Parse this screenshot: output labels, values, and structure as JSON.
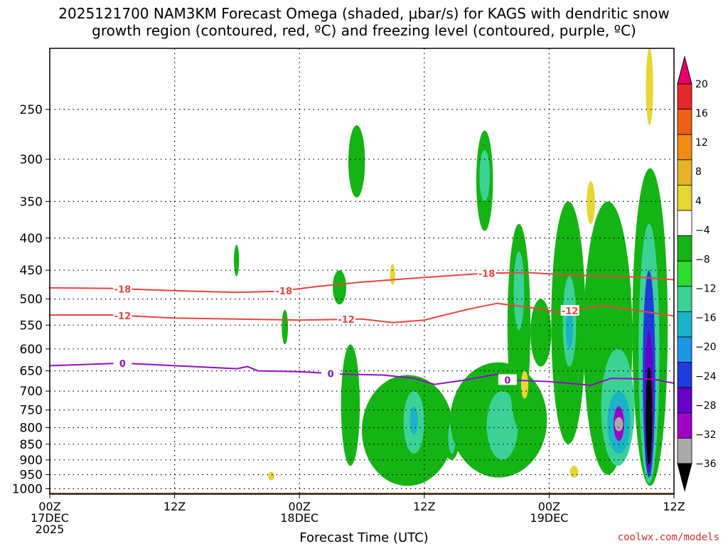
{
  "title_line1": "2025121700 NAM3KM Forecast Omega (shaded, μbar/s) for KAGS with dendritic snow",
  "title_line2": "growth region (contoured, red, ºC) and freezing level (contoured, purple, ºC)",
  "credit": "coolwx.com/models",
  "colors": {
    "dgz_line": "#e8453c",
    "freezing_line": "#9010c0",
    "ground": "#a0522d"
  },
  "chart_data": {
    "type": "heatmap",
    "title": "2025121700 NAM3KM Forecast Omega (shaded, μbar/s) for KAGS with dendritic snow growth region (contoured, red, ºC) and freezing level (contoured, purple, ºC)",
    "xlabel": "Forecast Time (UTC)",
    "ylabel": "",
    "x_range_hours": [
      0,
      60
    ],
    "y_range_hpa": [
      200,
      1020
    ],
    "y_scale": "log",
    "y_inverted": true,
    "grid": true,
    "y_ticks": [
      250,
      300,
      350,
      400,
      450,
      500,
      550,
      600,
      650,
      700,
      750,
      800,
      850,
      900,
      950,
      1000
    ],
    "x_ticks": [
      {
        "hour": 0,
        "lines": [
          "00Z",
          "17DEC",
          "2025"
        ]
      },
      {
        "hour": 12,
        "lines": [
          "12Z"
        ]
      },
      {
        "hour": 24,
        "lines": [
          "00Z",
          "18DEC"
        ]
      },
      {
        "hour": 36,
        "lines": [
          "12Z"
        ]
      },
      {
        "hour": 48,
        "lines": [
          "00Z",
          "19DEC"
        ]
      },
      {
        "hour": 60,
        "lines": [
          "12Z"
        ]
      }
    ],
    "colorbar": {
      "labels": [
        "20",
        "16",
        "12",
        "8",
        "4",
        "−4",
        "−8",
        "−12",
        "−16",
        "−20",
        "−24",
        "−28",
        "−32",
        "−36"
      ],
      "colors": [
        "#e8006e",
        "#e82828",
        "#f06014",
        "#f08c14",
        "#e6b428",
        "#e6d732",
        "#ffffff",
        "#14b414",
        "#2ddc2d",
        "#3cd296",
        "#19b4c8",
        "#1e96e6",
        "#1e3cdc",
        "#6400c8",
        "#a000c8",
        "#aaaaaa",
        "#000000"
      ]
    },
    "contours": [
      {
        "label": "-18",
        "color": "#e8453c",
        "label_hours": [
          7,
          22.5,
          42
        ],
        "points": [
          [
            0,
            480
          ],
          [
            6,
            481
          ],
          [
            12,
            485
          ],
          [
            18,
            488
          ],
          [
            22,
            486
          ],
          [
            26,
            477
          ],
          [
            30,
            470
          ],
          [
            36,
            462
          ],
          [
            42,
            455
          ],
          [
            46,
            454
          ],
          [
            50,
            458
          ],
          [
            54,
            460
          ],
          [
            57,
            462
          ],
          [
            60,
            466
          ]
        ]
      },
      {
        "label": "-12",
        "color": "#e8453c",
        "label_hours": [
          7,
          28.5,
          50
        ],
        "points": [
          [
            0,
            530
          ],
          [
            6,
            530
          ],
          [
            12,
            536
          ],
          [
            18,
            538
          ],
          [
            24,
            540
          ],
          [
            30,
            538
          ],
          [
            33,
            545
          ],
          [
            36,
            540
          ],
          [
            40,
            520
          ],
          [
            43,
            508
          ],
          [
            46,
            515
          ],
          [
            49,
            525
          ],
          [
            53,
            512
          ],
          [
            56,
            520
          ],
          [
            60,
            532
          ]
        ]
      },
      {
        "label": "0",
        "color": "#9010c0",
        "label_hours": [
          7,
          27,
          44
        ],
        "points": [
          [
            0,
            638
          ],
          [
            7,
            632
          ],
          [
            12,
            638
          ],
          [
            18,
            645
          ],
          [
            19,
            640
          ],
          [
            20,
            650
          ],
          [
            24,
            652
          ],
          [
            28,
            658
          ],
          [
            32,
            660
          ],
          [
            35,
            668
          ],
          [
            37,
            683
          ],
          [
            40,
            672
          ],
          [
            43,
            658
          ],
          [
            44,
            672
          ],
          [
            48,
            676
          ],
          [
            52,
            685
          ],
          [
            54,
            668
          ],
          [
            58,
            670
          ],
          [
            60,
            680
          ]
        ]
      }
    ],
    "shaded_regions": [
      {
        "value": -8,
        "h": [
          28.7,
          30.3
        ],
        "p": [
          265,
          345
        ]
      },
      {
        "value": -8,
        "h": [
          41.0,
          42.6
        ],
        "p": [
          270,
          390
        ]
      },
      {
        "value": -12,
        "h": [
          41.3,
          42.3
        ],
        "p": [
          290,
          350
        ]
      },
      {
        "value": -8,
        "h": [
          17.7,
          18.2
        ],
        "p": [
          410,
          460
        ]
      },
      {
        "value": -8,
        "h": [
          22.3,
          22.9
        ],
        "p": [
          520,
          590
        ]
      },
      {
        "value": -8,
        "h": [
          27.2,
          28.5
        ],
        "p": [
          450,
          510
        ]
      },
      {
        "value": -8,
        "h": [
          28.0,
          29.8
        ],
        "p": [
          590,
          920
        ]
      },
      {
        "value": -8,
        "h": [
          30.0,
          38.8
        ],
        "p": [
          660,
          990
        ]
      },
      {
        "value": -12,
        "h": [
          34.0,
          36.0
        ],
        "p": [
          700,
          880
        ]
      },
      {
        "value": -16,
        "h": [
          34.6,
          35.4
        ],
        "p": [
          740,
          820
        ]
      },
      {
        "value": -8,
        "h": [
          37.8,
          39.4
        ],
        "p": [
          760,
          900
        ]
      },
      {
        "value": -12,
        "h": [
          38.3,
          39.0
        ],
        "p": [
          780,
          880
        ]
      },
      {
        "value": -8,
        "h": [
          38.5,
          47.8
        ],
        "p": [
          630,
          960
        ]
      },
      {
        "value": -12,
        "h": [
          42.0,
          45.0
        ],
        "p": [
          700,
          900
        ]
      },
      {
        "value": -8,
        "h": [
          44.0,
          46.2
        ],
        "p": [
          380,
          800
        ]
      },
      {
        "value": -12,
        "h": [
          44.6,
          45.6
        ],
        "p": [
          420,
          560
        ]
      },
      {
        "value": -8,
        "h": [
          46.2,
          48.2
        ],
        "p": [
          500,
          640
        ]
      },
      {
        "value": -8,
        "h": [
          48.2,
          51.5
        ],
        "p": [
          350,
          850
        ]
      },
      {
        "value": -12,
        "h": [
          49.3,
          50.6
        ],
        "p": [
          460,
          640
        ]
      },
      {
        "value": -16,
        "h": [
          49.6,
          50.3
        ],
        "p": [
          520,
          600
        ]
      },
      {
        "value": -8,
        "h": [
          51.3,
          56.0
        ],
        "p": [
          350,
          950
        ]
      },
      {
        "value": -12,
        "h": [
          53.0,
          56.2
        ],
        "p": [
          600,
          920
        ]
      },
      {
        "value": -16,
        "h": [
          53.6,
          55.8
        ],
        "p": [
          700,
          880
        ]
      },
      {
        "value": -24,
        "h": [
          54.2,
          55.2
        ],
        "p": [
          740,
          840
        ]
      },
      {
        "value": -8,
        "h": [
          56.0,
          59.4
        ],
        "p": [
          310,
          990
        ]
      },
      {
        "value": -12,
        "h": [
          56.6,
          58.6
        ],
        "p": [
          380,
          980
        ]
      },
      {
        "value": -20,
        "h": [
          57.0,
          58.2
        ],
        "p": [
          450,
          960
        ]
      },
      {
        "value": -28,
        "h": [
          57.2,
          58.0
        ],
        "p": [
          560,
          940
        ]
      },
      {
        "value": -36,
        "h": [
          57.3,
          57.9
        ],
        "p": [
          640,
          915
        ]
      },
      {
        "value": 4,
        "h": [
          57.3,
          58.0
        ],
        "p": [
          200,
          265
        ]
      },
      {
        "value": 4,
        "h": [
          51.6,
          52.4
        ],
        "p": [
          325,
          380
        ]
      },
      {
        "value": 4,
        "h": [
          32.7,
          33.2
        ],
        "p": [
          440,
          475
        ]
      },
      {
        "value": 4,
        "h": [
          45.3,
          46.0
        ],
        "p": [
          650,
          720
        ]
      },
      {
        "value": 4,
        "h": [
          21.0,
          21.6
        ],
        "p": [
          940,
          970
        ]
      },
      {
        "value": 4,
        "h": [
          50.0,
          50.8
        ],
        "p": [
          920,
          960
        ]
      }
    ],
    "ground_pressure_hpa": 1015
  }
}
